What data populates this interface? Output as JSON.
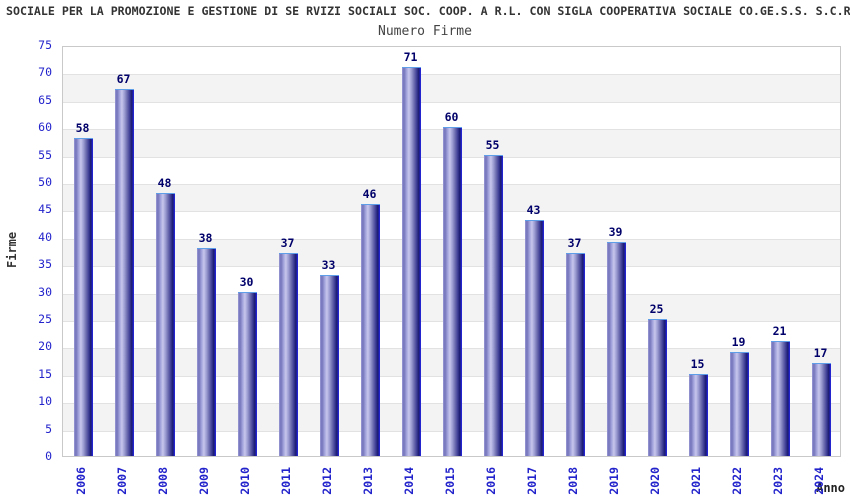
{
  "header": {
    "title": "SOCIALE PER LA PROMOZIONE E GESTIONE DI SE RVIZI SOCIALI SOC. COOP. A R.L. CON SIGLA COOPERATIVA SOCIALE CO.GE.S.S. S.C.R",
    "subtitle": "Numero Firme"
  },
  "chart_data": {
    "type": "bar",
    "title": "Numero Firme",
    "categories": [
      "2006",
      "2007",
      "2008",
      "2009",
      "2010",
      "2011",
      "2012",
      "2013",
      "2014",
      "2015",
      "2016",
      "2017",
      "2018",
      "2019",
      "2020",
      "2021",
      "2022",
      "2023",
      "2024"
    ],
    "values": [
      58,
      67,
      48,
      38,
      30,
      37,
      33,
      46,
      71,
      60,
      55,
      43,
      37,
      39,
      25,
      15,
      19,
      21,
      17
    ],
    "xlabel": "Anno",
    "ylabel": "Firme",
    "ylim": [
      0,
      75
    ],
    "ytick_step": 5,
    "grid": true,
    "legend": "none",
    "colors": {
      "bar_dark": "#17176c",
      "bar_light": "#c6c6ec",
      "bar_edge_highlight": "#2828d4",
      "bar_top_border": "#5e9de8",
      "tick_label": "#2323cc",
      "value_label": "#00006a",
      "band_gray": "#f3f3f3",
      "gridline": "#e2e2e2",
      "plot_border": "#c9c9c9"
    }
  }
}
